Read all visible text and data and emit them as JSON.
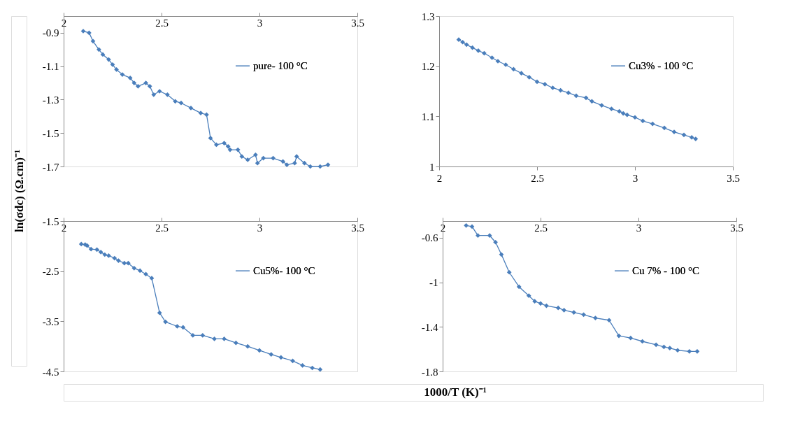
{
  "chart_data": [
    {
      "type": "line",
      "ylabel": "ln(σdc) (Ω.cm)⁻¹",
      "xlim": [
        2,
        3.5
      ],
      "xticks": [
        2,
        2.5,
        3,
        3.5
      ],
      "ylim": [
        -1.7,
        -0.8
      ],
      "yticks": [
        -1.7,
        -1.5,
        -1.3,
        -1.1,
        -0.9
      ],
      "grid": false,
      "legend": "right",
      "marker": "diamond",
      "line_style": "solid",
      "series": [
        {
          "name": "pure- 100 °C",
          "color": "#4a7ebb",
          "x": [
            2.1,
            2.13,
            2.15,
            2.18,
            2.2,
            2.23,
            2.25,
            2.27,
            2.3,
            2.34,
            2.36,
            2.38,
            2.42,
            2.44,
            2.46,
            2.49,
            2.53,
            2.57,
            2.6,
            2.65,
            2.7,
            2.73,
            2.75,
            2.78,
            2.82,
            2.84,
            2.85,
            2.89,
            2.91,
            2.94,
            2.98,
            2.99,
            3.02,
            3.07,
            3.12,
            3.14,
            3.18,
            3.19,
            3.23,
            3.26,
            3.31,
            3.35
          ],
          "values": [
            -0.89,
            -0.9,
            -0.95,
            -1.0,
            -1.03,
            -1.06,
            -1.09,
            -1.12,
            -1.15,
            -1.17,
            -1.2,
            -1.22,
            -1.2,
            -1.22,
            -1.27,
            -1.25,
            -1.27,
            -1.31,
            -1.32,
            -1.35,
            -1.38,
            -1.39,
            -1.53,
            -1.57,
            -1.56,
            -1.58,
            -1.6,
            -1.6,
            -1.64,
            -1.66,
            -1.63,
            -1.68,
            -1.65,
            -1.65,
            -1.67,
            -1.69,
            -1.68,
            -1.64,
            -1.68,
            -1.7,
            -1.7,
            -1.69
          ]
        }
      ]
    },
    {
      "type": "line",
      "xlim": [
        2,
        3.5
      ],
      "xticks": [
        2,
        2.5,
        3,
        3.5
      ],
      "ylim": [
        1,
        1.3
      ],
      "yticks": [
        1,
        1.1,
        1.2,
        1.3
      ],
      "grid": false,
      "legend": "right",
      "marker": "diamond",
      "line_style": "solid",
      "series": [
        {
          "name": "Cu3% - 100 °C",
          "color": "#4a7ebb",
          "x": [
            2.1,
            2.12,
            2.14,
            2.17,
            2.2,
            2.23,
            2.27,
            2.3,
            2.34,
            2.38,
            2.42,
            2.46,
            2.5,
            2.54,
            2.58,
            2.62,
            2.66,
            2.7,
            2.75,
            2.78,
            2.83,
            2.88,
            2.92,
            2.94,
            2.96,
            3.0,
            3.04,
            3.09,
            3.15,
            3.2,
            3.25,
            3.29,
            3.31
          ],
          "values": [
            1.253,
            1.248,
            1.243,
            1.237,
            1.231,
            1.226,
            1.217,
            1.21,
            1.203,
            1.194,
            1.186,
            1.178,
            1.169,
            1.164,
            1.157,
            1.152,
            1.147,
            1.141,
            1.137,
            1.13,
            1.122,
            1.115,
            1.11,
            1.106,
            1.103,
            1.098,
            1.091,
            1.085,
            1.077,
            1.069,
            1.063,
            1.058,
            1.055
          ]
        }
      ]
    },
    {
      "type": "line",
      "xlim": [
        2,
        3.5
      ],
      "xticks": [
        2,
        2.5,
        3,
        3.5
      ],
      "ylim": [
        -4.5,
        -1.5
      ],
      "yticks": [
        -4.5,
        -3.5,
        -2.5,
        -1.5
      ],
      "grid": false,
      "legend": "right",
      "marker": "diamond",
      "line_style": "solid",
      "series": [
        {
          "name": "Cu5%- 100 °C",
          "color": "#4a7ebb",
          "x": [
            2.09,
            2.11,
            2.12,
            2.14,
            2.17,
            2.19,
            2.21,
            2.23,
            2.26,
            2.28,
            2.31,
            2.33,
            2.36,
            2.39,
            2.42,
            2.45,
            2.49,
            2.52,
            2.58,
            2.61,
            2.66,
            2.71,
            2.77,
            2.82,
            2.88,
            2.94,
            3.0,
            3.06,
            3.11,
            3.17,
            3.22,
            3.27,
            3.31
          ],
          "values": [
            -1.96,
            -1.97,
            -1.99,
            -2.06,
            -2.07,
            -2.12,
            -2.17,
            -2.19,
            -2.24,
            -2.29,
            -2.34,
            -2.34,
            -2.44,
            -2.49,
            -2.56,
            -2.64,
            -3.33,
            -3.51,
            -3.6,
            -3.62,
            -3.78,
            -3.78,
            -3.85,
            -3.85,
            -3.93,
            -4.0,
            -4.08,
            -4.16,
            -4.22,
            -4.29,
            -4.38,
            -4.43,
            -4.46
          ]
        }
      ]
    },
    {
      "type": "line",
      "xlabel": "1000/T (K)⁻¹",
      "xlim": [
        2,
        3.5
      ],
      "xticks": [
        2,
        2.5,
        3,
        3.5
      ],
      "ylim": [
        -1.8,
        -0.45
      ],
      "yticks": [
        -1.8,
        -1.4,
        -1,
        -0.6
      ],
      "grid": false,
      "legend": "right",
      "marker": "diamond",
      "line_style": "solid",
      "series": [
        {
          "name": "Cu 7% - 100 °C",
          "color": "#4a7ebb",
          "x": [
            2.12,
            2.15,
            2.18,
            2.24,
            2.27,
            2.3,
            2.34,
            2.39,
            2.44,
            2.47,
            2.5,
            2.53,
            2.59,
            2.62,
            2.67,
            2.72,
            2.78,
            2.85,
            2.9,
            2.96,
            3.02,
            3.09,
            3.13,
            3.16,
            3.2,
            3.26,
            3.3
          ],
          "values": [
            -0.49,
            -0.5,
            -0.58,
            -0.58,
            -0.64,
            -0.75,
            -0.91,
            -1.04,
            -1.12,
            -1.17,
            -1.19,
            -1.21,
            -1.23,
            -1.25,
            -1.27,
            -1.29,
            -1.32,
            -1.34,
            -1.48,
            -1.5,
            -1.53,
            -1.56,
            -1.58,
            -1.59,
            -1.61,
            -1.62,
            -1.62
          ]
        }
      ]
    }
  ]
}
